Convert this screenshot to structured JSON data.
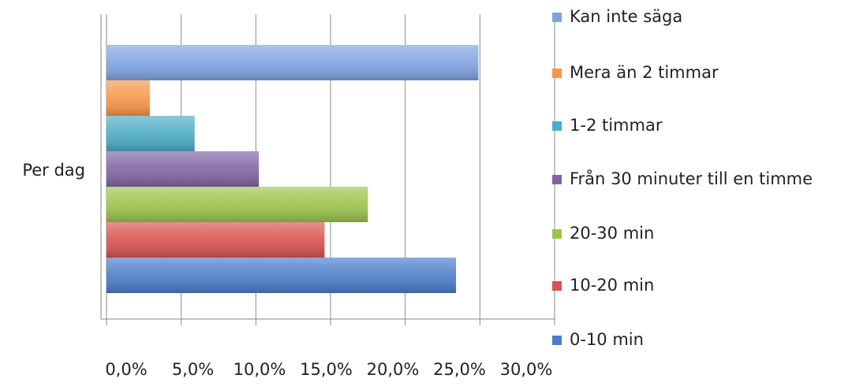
{
  "chart_data": {
    "type": "hbar",
    "categories": [
      "Per dag"
    ],
    "series": [
      {
        "name": "0-10 min",
        "color": "#4a7cc9",
        "values": [
          23.4
        ]
      },
      {
        "name": "10-20 min",
        "color": "#d9534f",
        "values": [
          14.6
        ]
      },
      {
        "name": "20-30 min",
        "color": "#9bc34a",
        "values": [
          17.5
        ]
      },
      {
        "name": "Från 30 minuter till en timme",
        "color": "#8064a2",
        "values": [
          10.2
        ]
      },
      {
        "name": "1-2 timmar",
        "color": "#4bacc6",
        "values": [
          5.9
        ]
      },
      {
        "name": "Mera än 2 timmar",
        "color": "#f79646",
        "values": [
          2.9
        ]
      },
      {
        "name": "Kan inte säga",
        "color": "#7fa3e0",
        "values": [
          24.9
        ]
      }
    ],
    "xlim": [
      0,
      30
    ],
    "xticks": [
      {
        "value": 0,
        "label": "0,0%"
      },
      {
        "value": 5,
        "label": "5,0%"
      },
      {
        "value": 10,
        "label": "10,0%"
      },
      {
        "value": 15,
        "label": "15,0%"
      },
      {
        "value": 20,
        "label": "20,0%"
      },
      {
        "value": 25,
        "label": "25,0%"
      },
      {
        "value": 30,
        "label": "30,0%"
      }
    ],
    "grid": true,
    "legend": "right"
  }
}
